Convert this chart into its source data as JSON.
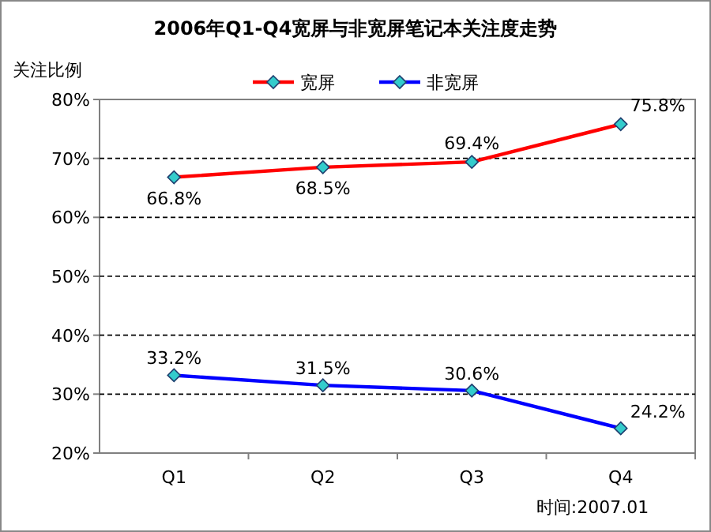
{
  "chart_data": {
    "type": "line",
    "title": "2006年Q1-Q4宽屏与非宽屏笔记本关注度走势",
    "ylabel": "关注比例",
    "categories": [
      "Q1",
      "Q2",
      "Q3",
      "Q4"
    ],
    "series": [
      {
        "name": "宽屏",
        "color": "#ff0000",
        "values": [
          66.8,
          68.5,
          69.4,
          75.8
        ],
        "value_labels": [
          "66.8%",
          "68.5%",
          "69.4%",
          "75.8%"
        ]
      },
      {
        "name": "非宽屏",
        "color": "#0000ff",
        "values": [
          33.2,
          31.5,
          30.6,
          24.2
        ],
        "value_labels": [
          "33.2%",
          "31.5%",
          "30.6%",
          "24.2%"
        ]
      }
    ],
    "ylim": [
      20,
      80
    ],
    "yticks": [
      {
        "value": 20,
        "label": "20%"
      },
      {
        "value": 30,
        "label": "30%"
      },
      {
        "value": 40,
        "label": "40%"
      },
      {
        "value": 50,
        "label": "50%"
      },
      {
        "value": 60,
        "label": "60%"
      },
      {
        "value": 70,
        "label": "70%"
      },
      {
        "value": 80,
        "label": "80%"
      }
    ],
    "grid": "y",
    "legend": "top",
    "marker": "diamond",
    "line_style": "solid",
    "annotations": [
      "时间:2007.01"
    ]
  }
}
